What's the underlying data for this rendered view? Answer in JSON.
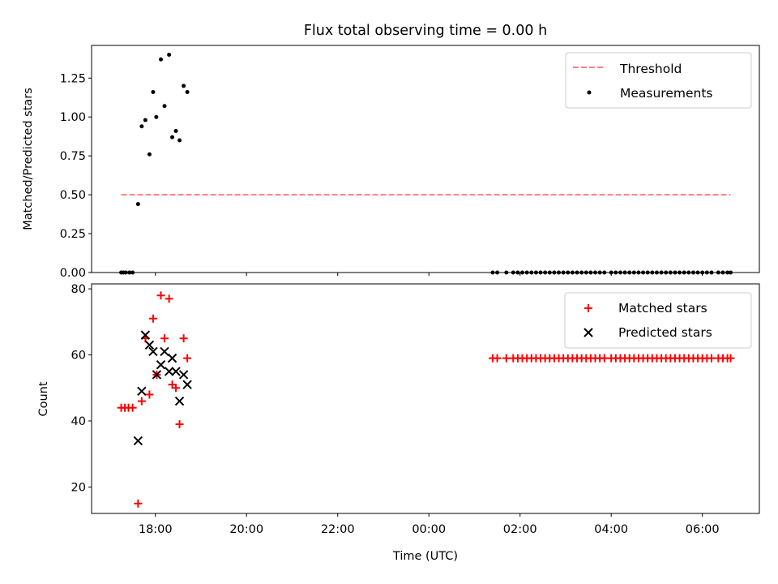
{
  "chart_data": [
    {
      "type": "scatter",
      "title": "Flux total observing time = 0.00 h",
      "xlabel": "",
      "ylabel": "Matched/Predicted stars",
      "xlim": [
        16.6,
        31.25
      ],
      "ylim": [
        0.0,
        1.46
      ],
      "yticks": [
        0.0,
        0.25,
        0.5,
        0.75,
        1.0,
        1.25
      ],
      "ytick_labels": [
        "0.00",
        "0.25",
        "0.50",
        "0.75",
        "1.00",
        "1.25"
      ],
      "xticks": [
        18,
        20,
        22,
        24,
        26,
        28,
        30
      ],
      "legend_position": "upper-right",
      "series": [
        {
          "name": "Threshold",
          "kind": "dashed-line",
          "color": "#ff7f7f",
          "x": [
            17.25,
            30.62
          ],
          "y": [
            0.5,
            0.5
          ]
        },
        {
          "name": "Measurements",
          "kind": "dots",
          "color": "#000000",
          "x": [
            17.25,
            17.3,
            17.35,
            17.43,
            17.5,
            17.62,
            17.7,
            17.78,
            17.87,
            17.95,
            18.02,
            18.12,
            18.2,
            18.3,
            18.37,
            18.45,
            18.53,
            18.62,
            18.7,
            25.4,
            25.5,
            25.7,
            25.85,
            25.95,
            26.05,
            26.15,
            26.25,
            26.35,
            26.45,
            26.55,
            26.65,
            26.75,
            26.85,
            26.95,
            27.05,
            27.15,
            27.25,
            27.35,
            27.45,
            27.55,
            27.65,
            27.75,
            27.85,
            28.0,
            28.1,
            28.2,
            28.3,
            28.4,
            28.5,
            28.6,
            28.7,
            28.8,
            28.9,
            29.0,
            29.1,
            29.2,
            29.3,
            29.4,
            29.5,
            29.6,
            29.7,
            29.8,
            29.9,
            30.0,
            30.1,
            30.2,
            30.35,
            30.45,
            30.55,
            30.62
          ],
          "y": [
            0,
            0,
            0,
            0,
            0,
            0.44,
            0.94,
            0.98,
            0.76,
            1.16,
            1.0,
            1.37,
            1.07,
            1.4,
            0.87,
            0.91,
            0.85,
            1.2,
            1.16,
            0,
            0,
            0,
            0,
            0,
            0,
            0,
            0,
            0,
            0,
            0,
            0,
            0,
            0,
            0,
            0,
            0,
            0,
            0,
            0,
            0,
            0,
            0,
            0,
            0,
            0,
            0,
            0,
            0,
            0,
            0,
            0,
            0,
            0,
            0,
            0,
            0,
            0,
            0,
            0,
            0,
            0,
            0,
            0,
            0,
            0,
            0,
            0,
            0,
            0,
            0
          ]
        }
      ]
    },
    {
      "type": "scatter",
      "title": "",
      "xlabel": "Time (UTC)",
      "ylabel": "Count",
      "xlim": [
        16.6,
        31.25
      ],
      "ylim": [
        12.0,
        81.5
      ],
      "yticks": [
        20,
        40,
        60,
        80
      ],
      "ytick_labels": [
        "20",
        "40",
        "60",
        "80"
      ],
      "xticks": [
        18,
        20,
        22,
        24,
        26,
        28,
        30
      ],
      "xtick_labels": [
        "18:00",
        "20:00",
        "22:00",
        "00:00",
        "02:00",
        "04:00",
        "06:00"
      ],
      "legend_position": "upper-right",
      "series": [
        {
          "name": "Matched stars",
          "marker": "plus",
          "color": "#ff0000",
          "x": [
            17.25,
            17.33,
            17.41,
            17.5,
            17.62,
            17.7,
            17.78,
            17.87,
            17.95,
            18.03,
            18.12,
            18.2,
            18.3,
            18.37,
            18.45,
            18.53,
            18.62,
            18.7,
            25.4,
            25.5,
            25.7,
            25.85,
            25.95,
            26.05,
            26.15,
            26.25,
            26.35,
            26.45,
            26.55,
            26.65,
            26.75,
            26.85,
            26.95,
            27.05,
            27.15,
            27.25,
            27.35,
            27.45,
            27.55,
            27.65,
            27.75,
            27.85,
            28.0,
            28.1,
            28.2,
            28.3,
            28.4,
            28.5,
            28.6,
            28.7,
            28.8,
            28.9,
            29.0,
            29.1,
            29.2,
            29.3,
            29.4,
            29.5,
            29.6,
            29.7,
            29.8,
            29.9,
            30.0,
            30.1,
            30.2,
            30.35,
            30.45,
            30.55,
            30.62
          ],
          "y": [
            44,
            44,
            44,
            44,
            15,
            46,
            65,
            48,
            71,
            54,
            78,
            65,
            77,
            51,
            50,
            39,
            65,
            59,
            59,
            59,
            59,
            59,
            59,
            59,
            59,
            59,
            59,
            59,
            59,
            59,
            59,
            59,
            59,
            59,
            59,
            59,
            59,
            59,
            59,
            59,
            59,
            59,
            59,
            59,
            59,
            59,
            59,
            59,
            59,
            59,
            59,
            59,
            59,
            59,
            59,
            59,
            59,
            59,
            59,
            59,
            59,
            59,
            59,
            59,
            59,
            59,
            59,
            59,
            59
          ]
        },
        {
          "name": "Predicted stars",
          "marker": "x",
          "color": "#000000",
          "x": [
            17.62,
            17.7,
            17.78,
            17.87,
            17.95,
            18.03,
            18.12,
            18.2,
            18.3,
            18.37,
            18.45,
            18.53,
            18.62,
            18.7
          ],
          "y": [
            34,
            49,
            66,
            63,
            61,
            54,
            57,
            61,
            55,
            59,
            55,
            46,
            54,
            51
          ]
        }
      ]
    }
  ]
}
